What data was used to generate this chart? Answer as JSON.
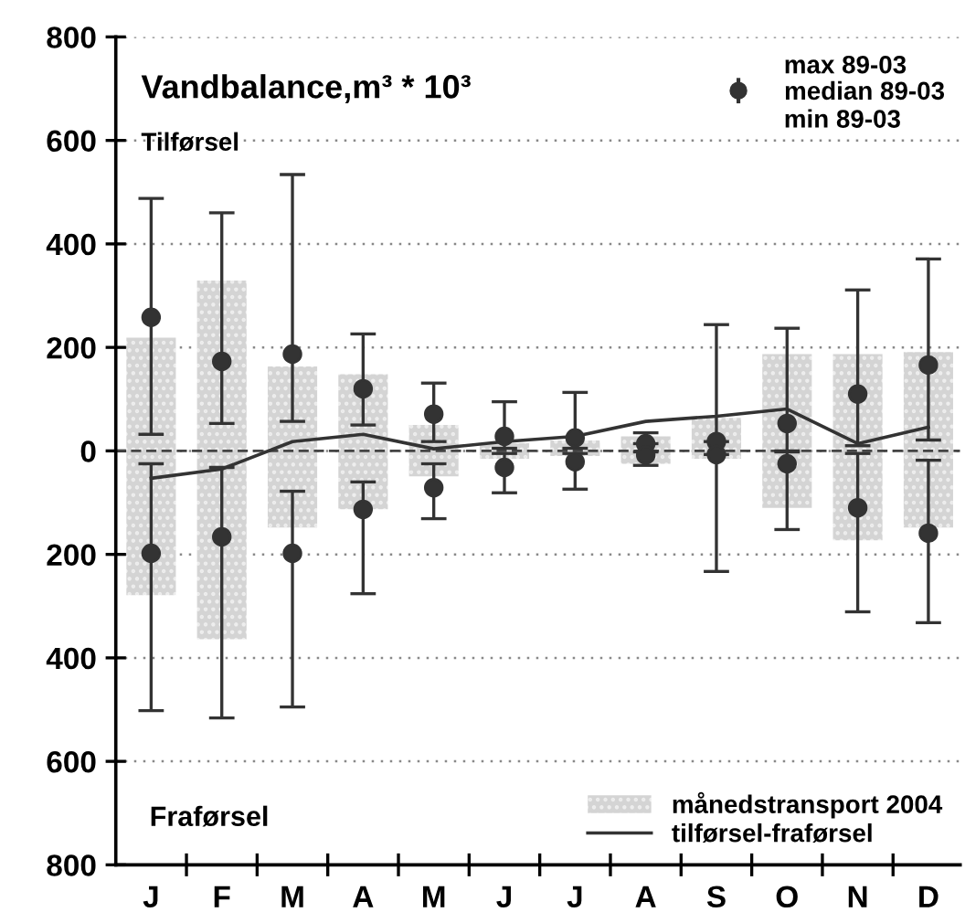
{
  "chart_data": {
    "type": "bar",
    "title": "Vandbalance,m³ * 10³",
    "annotations": [
      "Tilførsel",
      "Fraførsel",
      "max 89-03",
      "min 89-03"
    ],
    "categories": [
      "J",
      "F",
      "M",
      "A",
      "M",
      "J",
      "J",
      "A",
      "S",
      "O",
      "N",
      "D"
    ],
    "series": [
      {
        "name": "månedstransport 2004",
        "color": "#d4d4d4",
        "base": [
          -279,
          -364,
          -148,
          -113,
          -49,
          -15,
          -10,
          -25,
          -15,
          -110,
          -173,
          -148
        ],
        "values": [
          498,
          693,
          311,
          261,
          99,
          30,
          30,
          53,
          79,
          297,
          360,
          339
        ]
      },
      {
        "type": "scatter",
        "name": "median 89-03",
        "marker": "circle",
        "color": "#333333",
        "values": [
          258,
          173,
          187,
          120,
          71,
          28,
          25,
          14,
          18,
          53,
          110,
          166
        ],
        "errors": [
          [
            32,
            488
          ],
          [
            53,
            460
          ],
          [
            57,
            534
          ],
          [
            50,
            226
          ],
          [
            18,
            131
          ],
          [
            5,
            95
          ],
          [
            5,
            113
          ],
          [
            14,
            35
          ],
          [
            18,
            244
          ],
          [
            0,
            237
          ],
          [
            10,
            311
          ],
          [
            21,
            371
          ]
        ]
      },
      {
        "type": "scatter",
        "marker": "circle",
        "color": "#333333",
        "values": [
          -198,
          -166,
          -198,
          -113,
          -71,
          -32,
          -21,
          -8,
          -7,
          -25,
          -110,
          -159
        ],
        "errors": [
          [
            -502,
            -25
          ],
          [
            -516,
            -32
          ],
          [
            -495,
            -78
          ],
          [
            -276,
            -60
          ],
          [
            -131,
            -25
          ],
          [
            -81,
            -5
          ],
          [
            -74,
            -5
          ],
          [
            -28,
            -2
          ],
          [
            -233,
            -7
          ],
          [
            -152,
            -2
          ],
          [
            -311,
            -5
          ],
          [
            -332,
            -18
          ]
        ]
      },
      {
        "type": "line",
        "name": "tilførsel-fraførsel",
        "color": "#333333",
        "values": [
          -53,
          -35,
          18,
          32,
          4,
          18,
          28,
          57,
          67,
          81,
          14,
          46
        ]
      }
    ],
    "ylim": [
      -800,
      800
    ],
    "yticks": [
      {
        "value": -800,
        "label": "800"
      },
      {
        "value": -600,
        "label": "600"
      },
      {
        "value": -400,
        "label": "400"
      },
      {
        "value": -200,
        "label": "200"
      },
      0,
      200,
      400,
      600,
      800
    ],
    "ref_lines": [
      {
        "axis": "y",
        "value": 0,
        "color": "#444444",
        "line_style": "dashed"
      }
    ],
    "grid": "y",
    "legend": "bottom right"
  }
}
